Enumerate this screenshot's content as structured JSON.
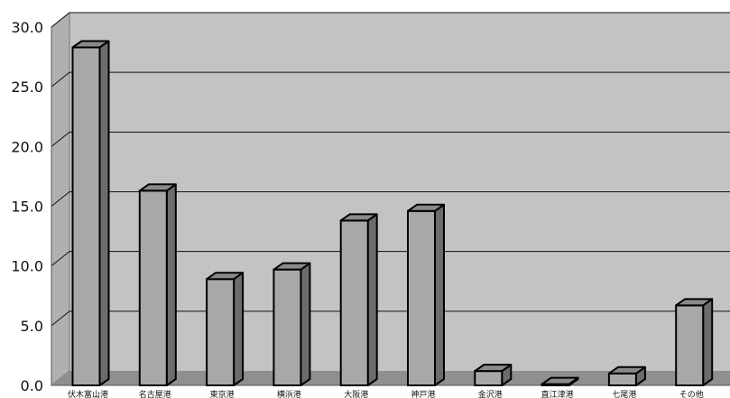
{
  "chart_data": {
    "type": "bar",
    "title": "",
    "xlabel": "",
    "ylabel": "",
    "categories": [
      "伏木富山港",
      "名古屋港",
      "東京港",
      "横浜港",
      "大阪港",
      "神戸港",
      "金沢港",
      "直江津港",
      "七尾港",
      "その他"
    ],
    "values": [
      28.3,
      16.3,
      8.9,
      9.7,
      13.8,
      14.6,
      1.2,
      0.1,
      1.0,
      6.7
    ],
    "ylim": [
      0,
      30
    ],
    "yticks": [
      "0.0",
      "5.0",
      "10.0",
      "15.0",
      "20.0",
      "25.0",
      "30.0"
    ],
    "grid": true,
    "legend": "none",
    "colors": {
      "plot_back": "#c3c3c3",
      "floor": "#8f8f8f",
      "side_wall": "#b0b0b0",
      "bar_front": "#a8a8a8",
      "bar_side": "#6c6c6c",
      "bar_top": "#8a8a8a",
      "outline": "#000000",
      "gridline": "#111111"
    }
  }
}
